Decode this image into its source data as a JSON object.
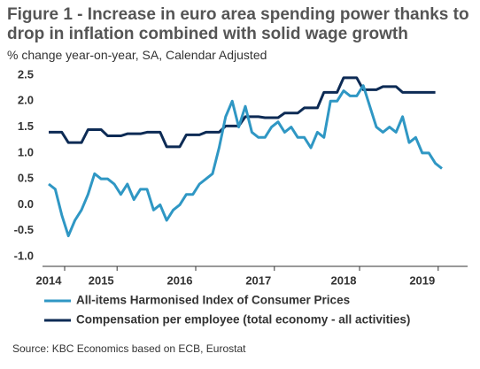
{
  "chart_data": {
    "type": "line",
    "title": "Figure 1 - Increase in euro area spending power thanks to drop in inflation combined with solid wage growth",
    "subtitle": "% change year-on-year, SA, Calendar Adjusted",
    "source": "Source: KBC Economics based on ECB, Eurostat",
    "categories": [
      "2014",
      null,
      null,
      null,
      null,
      null,
      null,
      null,
      "2015",
      null,
      null,
      null,
      null,
      null,
      null,
      null,
      null,
      null,
      null,
      null,
      "2016",
      null,
      null,
      null,
      null,
      null,
      null,
      null,
      null,
      null,
      null,
      null,
      "2017",
      null,
      null,
      null,
      null,
      null,
      null,
      null,
      null,
      null,
      null,
      null,
      null,
      "2018",
      null,
      null,
      null,
      null,
      null,
      null,
      null,
      null,
      null,
      null,
      null,
      "2019",
      null,
      null,
      null
    ],
    "series": [
      {
        "name": "All-items Harmonised Index of Consumer Prices",
        "color": "#2f97c4",
        "values": [
          0.4,
          0.3,
          -0.2,
          -0.6,
          -0.3,
          -0.1,
          0.2,
          0.6,
          0.5,
          0.5,
          0.4,
          0.2,
          0.4,
          0.1,
          0.3,
          0.3,
          -0.1,
          0.0,
          -0.3,
          -0.1,
          0.0,
          0.2,
          0.2,
          0.4,
          0.5,
          0.6,
          1.1,
          1.7,
          2.0,
          1.5,
          1.9,
          1.4,
          1.3,
          1.3,
          1.5,
          1.6,
          1.4,
          1.5,
          1.3,
          1.3,
          1.1,
          1.4,
          1.3,
          2.0,
          2.0,
          2.2,
          2.1,
          2.1,
          2.3,
          1.9,
          1.5,
          1.4,
          1.5,
          1.4,
          1.7,
          1.2,
          1.3,
          1.0,
          1.0,
          0.8,
          0.7
        ]
      },
      {
        "name": "Compensation per employee (total economy - all activities)",
        "color": "#0d2b55",
        "values": [
          1.4,
          1.4,
          1.4,
          1.2,
          1.2,
          1.2,
          1.45,
          1.45,
          1.45,
          1.33,
          1.33,
          1.33,
          1.37,
          1.37,
          1.37,
          1.4,
          1.4,
          1.4,
          1.12,
          1.12,
          1.12,
          1.35,
          1.35,
          1.35,
          1.4,
          1.4,
          1.4,
          1.52,
          1.52,
          1.52,
          1.7,
          1.7,
          1.7,
          1.68,
          1.68,
          1.68,
          1.77,
          1.77,
          1.77,
          1.87,
          1.87,
          1.87,
          2.17,
          2.17,
          2.17,
          2.45,
          2.45,
          2.45,
          2.22,
          2.22,
          2.22,
          2.28,
          2.28,
          2.28,
          2.17,
          2.17,
          2.17,
          2.17,
          2.17,
          2.17,
          null
        ]
      }
    ],
    "ylim": [
      -1.0,
      2.5
    ],
    "yticks": [
      {
        "value": -1.0,
        "label": "-1.0"
      },
      {
        "value": -0.5,
        "label": "-0.5"
      },
      {
        "value": 0.0,
        "label": "0.0"
      },
      {
        "value": 0.5,
        "label": "0.5"
      },
      {
        "value": 1.0,
        "label": "1.0"
      },
      {
        "value": 1.5,
        "label": "1.5"
      },
      {
        "value": 2.0,
        "label": "2.0"
      },
      {
        "value": 2.5,
        "label": "2.5"
      }
    ],
    "grid": false
  }
}
